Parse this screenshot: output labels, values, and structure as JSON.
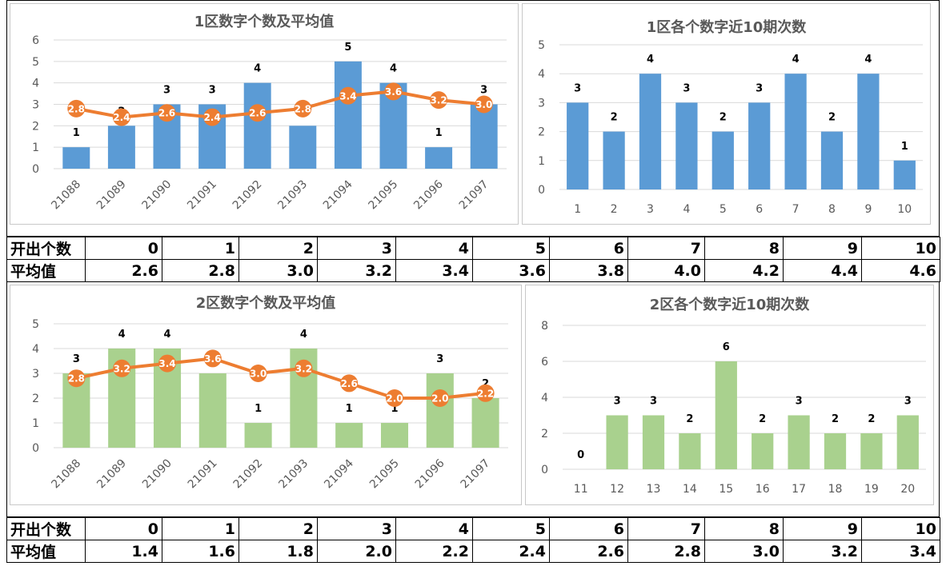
{
  "colors": {
    "blue": "#5B9BD5",
    "green": "#A9D18E",
    "orange": "#ED7D31",
    "grid": "#d9d9d9",
    "text": "#595959"
  },
  "chart_data": [
    {
      "type": "bar",
      "title": "1区数字个数及平均值",
      "categories": [
        "21088",
        "21089",
        "21090",
        "21091",
        "21092",
        "21093",
        "21094",
        "21095",
        "21096",
        "21097"
      ],
      "series": [
        {
          "kind": "bar",
          "values": [
            1,
            2,
            3,
            3,
            4,
            2,
            5,
            4,
            1,
            3
          ]
        },
        {
          "kind": "line",
          "values": [
            2.8,
            2.4,
            2.6,
            2.4,
            2.6,
            2.8,
            3.4,
            3.6,
            3.2,
            3.0
          ]
        }
      ],
      "ylim": [
        0,
        6
      ],
      "yticks": [
        0,
        1,
        2,
        3,
        4,
        5,
        6
      ],
      "xlabel": "",
      "ylabel": "",
      "grid": true
    },
    {
      "type": "bar",
      "title": "1区各个数字近10期次数",
      "categories": [
        "1",
        "2",
        "3",
        "4",
        "5",
        "6",
        "7",
        "8",
        "9",
        "10"
      ],
      "values": [
        3,
        2,
        4,
        3,
        2,
        3,
        4,
        2,
        4,
        1
      ],
      "ylim": [
        0,
        5
      ],
      "yticks": [
        0,
        1,
        2,
        3,
        4,
        5
      ],
      "xlabel": "",
      "ylabel": "",
      "grid": true
    },
    {
      "type": "bar",
      "title": "2区数字个数及平均值",
      "categories": [
        "21088",
        "21089",
        "21090",
        "21091",
        "21092",
        "21093",
        "21094",
        "21095",
        "21096",
        "21097"
      ],
      "series": [
        {
          "kind": "bar",
          "values": [
            3,
            4,
            4,
            3,
            1,
            4,
            1,
            1,
            3,
            2
          ]
        },
        {
          "kind": "line",
          "values": [
            2.8,
            3.2,
            3.4,
            3.6,
            3.0,
            3.2,
            2.6,
            2.0,
            2.0,
            2.2
          ]
        }
      ],
      "ylim": [
        0,
        5
      ],
      "yticks": [
        0,
        1,
        2,
        3,
        4,
        5
      ],
      "xlabel": "",
      "ylabel": "",
      "grid": true
    },
    {
      "type": "bar",
      "title": "2区各个数字近10期次数",
      "categories": [
        "11",
        "12",
        "13",
        "14",
        "15",
        "16",
        "17",
        "18",
        "19",
        "20"
      ],
      "values": [
        0,
        3,
        3,
        2,
        6,
        2,
        3,
        2,
        2,
        3
      ],
      "ylim": [
        0,
        8
      ],
      "yticks": [
        0,
        2,
        4,
        6,
        8
      ],
      "xlabel": "",
      "ylabel": "",
      "grid": true
    }
  ],
  "tables": [
    {
      "rows": [
        {
          "header": "开出个数",
          "cells": [
            "0",
            "1",
            "2",
            "3",
            "4",
            "5",
            "6",
            "7",
            "8",
            "9",
            "10"
          ]
        },
        {
          "header": "平均值",
          "cells": [
            "2.6",
            "2.8",
            "3.0",
            "3.2",
            "3.4",
            "3.6",
            "3.8",
            "4.0",
            "4.2",
            "4.4",
            "4.6"
          ]
        }
      ]
    },
    {
      "rows": [
        {
          "header": "开出个数",
          "cells": [
            "0",
            "1",
            "2",
            "3",
            "4",
            "5",
            "6",
            "7",
            "8",
            "9",
            "10"
          ]
        },
        {
          "header": "平均值",
          "cells": [
            "1.4",
            "1.6",
            "1.8",
            "2.0",
            "2.2",
            "2.4",
            "2.6",
            "2.8",
            "3.0",
            "3.2",
            "3.4"
          ]
        }
      ]
    }
  ]
}
